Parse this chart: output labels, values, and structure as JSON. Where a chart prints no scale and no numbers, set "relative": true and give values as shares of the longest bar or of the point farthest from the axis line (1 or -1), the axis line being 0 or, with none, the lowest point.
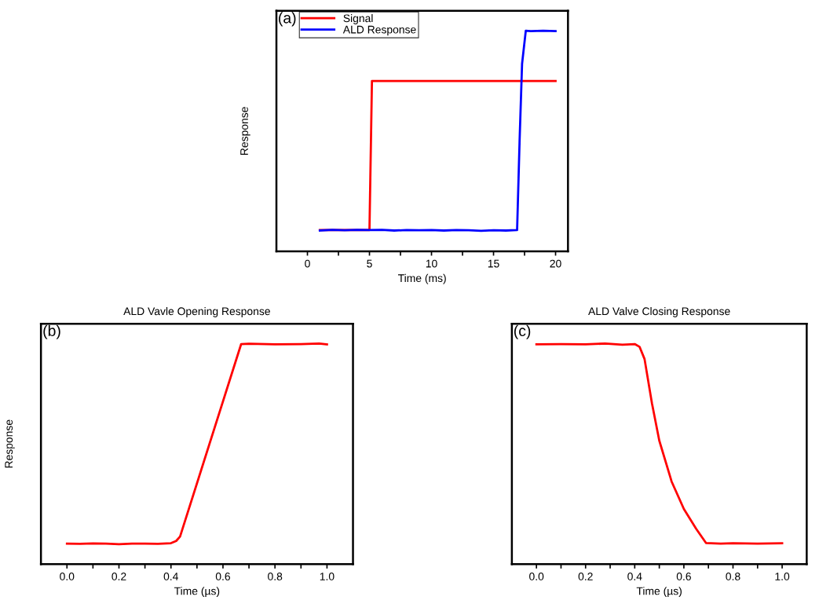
{
  "chart_data": [
    {
      "type": "line",
      "relative": true,
      "xlabel": "Time (ms)",
      "ylabel": "Response",
      "annotations": [
        "(a)"
      ],
      "xlim": [
        -2.5,
        21
      ],
      "xticks": [
        0,
        {
          "value": 2.5,
          "label": null
        },
        5,
        {
          "value": 7.5,
          "label": null
        },
        10,
        {
          "value": 12.5,
          "label": null
        },
        15,
        {
          "value": 17.5,
          "label": null
        },
        20
      ],
      "tick_labels": "x",
      "legend": "top left",
      "grid": false,
      "marker": "none",
      "line_style": "solid",
      "series": [
        {
          "name": "Signal",
          "color": "#ff0000",
          "x": [
            1,
            5,
            5.2,
            20
          ],
          "values": [
            0.096,
            0.096,
            0.772,
            0.772
          ]
        },
        {
          "name": "ALD Response",
          "color": "#0000ff",
          "x": [
            1,
            2,
            3,
            4,
            5,
            6,
            7,
            8,
            9,
            10,
            11,
            12,
            13,
            14,
            15,
            16,
            16.9,
            17.1,
            17.3,
            17.6,
            18,
            19,
            20
          ],
          "values": [
            0.094,
            0.097,
            0.095,
            0.097,
            0.096,
            0.097,
            0.094,
            0.096,
            0.095,
            0.096,
            0.094,
            0.096,
            0.095,
            0.093,
            0.095,
            0.094,
            0.096,
            0.5,
            0.85,
            1.0,
            0.998,
            1.0,
            0.998
          ]
        }
      ]
    },
    {
      "type": "line",
      "relative": true,
      "title": "ALD Vavle Opening Response",
      "xlabel": "Time (µs)",
      "ylabel": "Response",
      "annotations": [
        "(b)"
      ],
      "xlim": [
        -0.1,
        1.1
      ],
      "xticks": [
        {
          "value": 0,
          "label": "0.0"
        },
        {
          "value": 0.1,
          "label": null
        },
        {
          "value": 0.2,
          "label": "0.2"
        },
        {
          "value": 0.3,
          "label": null
        },
        {
          "value": 0.4,
          "label": "0.4"
        },
        {
          "value": 0.5,
          "label": null
        },
        {
          "value": 0.6,
          "label": "0.6"
        },
        {
          "value": 0.7,
          "label": null
        },
        {
          "value": 0.8,
          "label": "0.8"
        },
        {
          "value": 0.9,
          "label": null
        },
        {
          "value": 1,
          "label": "1.0"
        }
      ],
      "tick_labels": "x",
      "grid": false,
      "marker": "none",
      "line_style": "solid",
      "series": [
        {
          "color": "#ff0000",
          "x": [
            0,
            0.05,
            0.1,
            0.15,
            0.2,
            0.25,
            0.3,
            0.35,
            0.4,
            0.42,
            0.435,
            0.67,
            0.7,
            0.8,
            0.9,
            0.97,
            1.0
          ],
          "values": [
            0.093,
            0.092,
            0.094,
            0.093,
            0.09,
            0.093,
            0.093,
            0.092,
            0.095,
            0.105,
            0.125,
            0.998,
            0.999,
            0.997,
            0.998,
            1.0,
            0.996
          ]
        }
      ]
    },
    {
      "type": "line",
      "relative": true,
      "title": "ALD Valve Closing Response",
      "xlabel": "Time (µs)",
      "annotations": [
        "(c)"
      ],
      "xlim": [
        -0.1,
        1.1
      ],
      "xticks": [
        {
          "value": 0,
          "label": "0.0"
        },
        {
          "value": 0.1,
          "label": null
        },
        {
          "value": 0.2,
          "label": "0.2"
        },
        {
          "value": 0.3,
          "label": null
        },
        {
          "value": 0.4,
          "label": "0.4"
        },
        {
          "value": 0.5,
          "label": null
        },
        {
          "value": 0.6,
          "label": "0.6"
        },
        {
          "value": 0.7,
          "label": null
        },
        {
          "value": 0.8,
          "label": "0.8"
        },
        {
          "value": 0.9,
          "label": null
        },
        {
          "value": 1,
          "label": "1.0"
        }
      ],
      "tick_labels": "x",
      "grid": false,
      "marker": "none",
      "line_style": "solid",
      "series": [
        {
          "color": "#ff0000",
          "x": [
            0,
            0.1,
            0.2,
            0.28,
            0.35,
            0.4,
            0.42,
            0.44,
            0.47,
            0.5,
            0.55,
            0.6,
            0.65,
            0.69,
            0.75,
            0.8,
            0.9,
            1.0
          ],
          "values": [
            0.997,
            0.998,
            0.997,
            1.0,
            0.995,
            0.998,
            0.985,
            0.93,
            0.73,
            0.56,
            0.375,
            0.25,
            0.16,
            0.096,
            0.093,
            0.095,
            0.093,
            0.095
          ]
        }
      ]
    }
  ]
}
